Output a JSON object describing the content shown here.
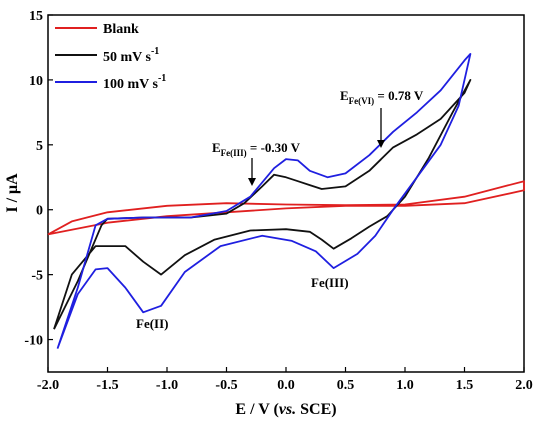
{
  "chart_data": {
    "type": "line",
    "xlabel_prefix": "E / V (",
    "xlabel_italic": "vs.",
    "xlabel_suffix": " SCE)",
    "ylabel": "I / μA",
    "xlim": [
      -2.0,
      2.0
    ],
    "ylim": [
      -12.5,
      15
    ],
    "xticks": [
      "-2.0",
      "-1.5",
      "-1.0",
      "-0.5",
      "0.0",
      "0.5",
      "1.0",
      "1.5",
      "2.0"
    ],
    "yticks": [
      "-10",
      "-5",
      "0",
      "5",
      "10",
      "15"
    ],
    "legend_position": "top-left",
    "series": [
      {
        "name": "Blank",
        "color": "#e02020",
        "points": [
          [
            -2.0,
            -1.9
          ],
          [
            -1.5,
            -1.0
          ],
          [
            -1.0,
            -0.5
          ],
          [
            -0.5,
            -0.2
          ],
          [
            0.0,
            0.1
          ],
          [
            0.5,
            0.3
          ],
          [
            1.0,
            0.3
          ],
          [
            1.5,
            0.5
          ],
          [
            2.0,
            1.5
          ],
          [
            2.0,
            2.2
          ],
          [
            1.5,
            1.0
          ],
          [
            1.0,
            0.4
          ],
          [
            0.5,
            0.35
          ],
          [
            0.0,
            0.4
          ],
          [
            -0.5,
            0.5
          ],
          [
            -1.0,
            0.3
          ],
          [
            -1.5,
            -0.2
          ],
          [
            -1.8,
            -0.9
          ],
          [
            -2.0,
            -1.9
          ]
        ]
      },
      {
        "name_prefix": "50 mV s",
        "name_sup": "-1",
        "color": "#111111",
        "points": [
          [
            -1.95,
            -9.2
          ],
          [
            -1.75,
            -5.5
          ],
          [
            -1.55,
            -1.2
          ],
          [
            -1.5,
            -0.7
          ],
          [
            -1.2,
            -0.6
          ],
          [
            -0.8,
            -0.6
          ],
          [
            -0.5,
            -0.3
          ],
          [
            -0.35,
            0.5
          ],
          [
            -0.2,
            1.8
          ],
          [
            -0.1,
            2.7
          ],
          [
            0.0,
            2.5
          ],
          [
            0.1,
            2.2
          ],
          [
            0.2,
            1.9
          ],
          [
            0.3,
            1.6
          ],
          [
            0.5,
            1.8
          ],
          [
            0.7,
            3.0
          ],
          [
            0.9,
            4.8
          ],
          [
            1.1,
            5.8
          ],
          [
            1.3,
            7.0
          ],
          [
            1.5,
            9.0
          ],
          [
            1.55,
            10.0
          ],
          [
            1.4,
            7.5
          ],
          [
            1.2,
            4.0
          ],
          [
            1.0,
            1.0
          ],
          [
            0.85,
            -0.5
          ],
          [
            0.7,
            -1.3
          ],
          [
            0.55,
            -2.2
          ],
          [
            0.4,
            -3.0
          ],
          [
            0.3,
            -2.3
          ],
          [
            0.2,
            -1.7
          ],
          [
            0.0,
            -1.5
          ],
          [
            -0.3,
            -1.6
          ],
          [
            -0.6,
            -2.3
          ],
          [
            -0.85,
            -3.5
          ],
          [
            -1.05,
            -5.0
          ],
          [
            -1.2,
            -4.0
          ],
          [
            -1.35,
            -2.8
          ],
          [
            -1.6,
            -2.8
          ],
          [
            -1.8,
            -5.0
          ],
          [
            -1.95,
            -9.2
          ]
        ]
      },
      {
        "name_prefix": "100 mV s",
        "name_sup": "-1",
        "color": "#1f1fe0",
        "points": [
          [
            -1.92,
            -10.7
          ],
          [
            -1.75,
            -6.0
          ],
          [
            -1.6,
            -1.2
          ],
          [
            -1.5,
            -0.7
          ],
          [
            -1.2,
            -0.6
          ],
          [
            -0.8,
            -0.6
          ],
          [
            -0.5,
            -0.1
          ],
          [
            -0.3,
            1.0
          ],
          [
            -0.1,
            3.2
          ],
          [
            0.0,
            3.9
          ],
          [
            0.1,
            3.8
          ],
          [
            0.2,
            3.0
          ],
          [
            0.35,
            2.5
          ],
          [
            0.5,
            2.8
          ],
          [
            0.7,
            4.2
          ],
          [
            0.9,
            6.0
          ],
          [
            1.1,
            7.5
          ],
          [
            1.3,
            9.2
          ],
          [
            1.5,
            11.5
          ],
          [
            1.55,
            12.0
          ],
          [
            1.45,
            8.0
          ],
          [
            1.3,
            5.0
          ],
          [
            1.1,
            2.5
          ],
          [
            0.9,
            0.0
          ],
          [
            0.75,
            -2.0
          ],
          [
            0.6,
            -3.4
          ],
          [
            0.4,
            -4.5
          ],
          [
            0.25,
            -3.2
          ],
          [
            0.05,
            -2.4
          ],
          [
            -0.2,
            -2.0
          ],
          [
            -0.55,
            -2.8
          ],
          [
            -0.85,
            -4.8
          ],
          [
            -1.05,
            -7.4
          ],
          [
            -1.2,
            -7.9
          ],
          [
            -1.35,
            -6.0
          ],
          [
            -1.5,
            -4.5
          ],
          [
            -1.6,
            -4.6
          ],
          [
            -1.75,
            -6.5
          ],
          [
            -1.92,
            -10.7
          ]
        ]
      }
    ],
    "annotations": {
      "fe3_base": "E",
      "fe3_sub": "Fe(III)",
      "fe3_value": " = -0.30 V",
      "fe6_base": "E",
      "fe6_sub": "Fe(VI)",
      "fe6_value": " = 0.78 V",
      "fe3_peak": "Fe(III)",
      "fe2_peak": "Fe(II)"
    }
  }
}
